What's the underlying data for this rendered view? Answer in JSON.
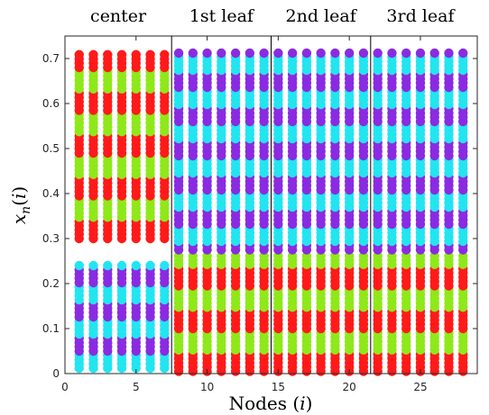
{
  "chart_data": {
    "type": "scatter",
    "xlabel": "Nodes (i)",
    "ylabel": "x_n(i)",
    "xlim": [
      0,
      29
    ],
    "ylim": [
      0,
      0.75
    ],
    "xticks": [
      0,
      5,
      10,
      15,
      20,
      25
    ],
    "yticks": [
      0,
      0.1,
      0.2,
      0.3,
      0.4,
      0.5,
      0.6,
      0.7
    ],
    "ytick_labels": [
      "0",
      "0.1",
      "0.2",
      "0.3",
      "0.4",
      "0.5",
      "0.6",
      "0.7"
    ],
    "grid": false,
    "region_separators_x": [
      7.5,
      14.5,
      21.5
    ],
    "regions": [
      {
        "label": "center",
        "x_center": 3.75
      },
      {
        "label": "1st leaf",
        "x_center": 11.0
      },
      {
        "label": "2nd leaf",
        "x_center": 18.0
      },
      {
        "label": "3rd leaf",
        "x_center": 25.0
      }
    ],
    "colors": {
      "red": "#ff1a1a",
      "green": "#8fe81a",
      "purple": "#8a2be2",
      "cyan": "#22e5f0"
    },
    "series": [
      {
        "color": "red",
        "nodes": [
          1,
          7
        ],
        "y_range": [
          0.3,
          0.71
        ],
        "band_layer": "center-high"
      },
      {
        "color": "green",
        "nodes": [
          1,
          7
        ],
        "y_range": [
          0.3,
          0.71
        ],
        "band_layer": "center-high"
      },
      {
        "color": "purple",
        "nodes": [
          1,
          7
        ],
        "y_range": [
          0.0,
          0.24
        ],
        "band_layer": "center-low"
      },
      {
        "color": "cyan",
        "nodes": [
          1,
          7
        ],
        "y_range": [
          0.0,
          0.24
        ],
        "band_layer": "center-low"
      },
      {
        "color": "purple",
        "nodes": [
          8,
          28
        ],
        "y_range": [
          0.27,
          0.72
        ],
        "band_layer": "leaf-high"
      },
      {
        "color": "cyan",
        "nodes": [
          8,
          28
        ],
        "y_range": [
          0.27,
          0.72
        ],
        "band_layer": "leaf-high"
      },
      {
        "color": "red",
        "nodes": [
          8,
          28
        ],
        "y_range": [
          0.0,
          0.27
        ],
        "band_layer": "leaf-low"
      },
      {
        "color": "green",
        "nodes": [
          8,
          28
        ],
        "y_range": [
          0.0,
          0.27
        ],
        "band_layer": "leaf-low"
      }
    ]
  }
}
